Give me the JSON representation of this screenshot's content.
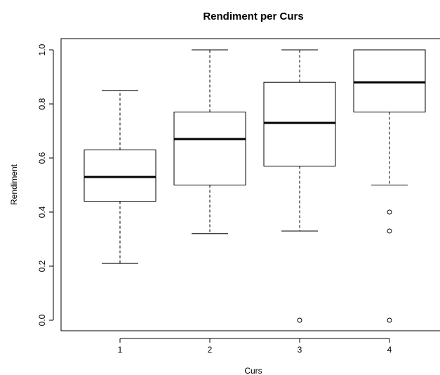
{
  "chart_data": {
    "type": "boxplot",
    "title": "Rendiment per Curs",
    "xlabel": "Curs",
    "ylabel": "Rendiment",
    "ylim": [
      -0.04,
      1.04
    ],
    "yticks": [
      0.0,
      0.2,
      0.4,
      0.6,
      0.8,
      1.0
    ],
    "ytick_labels": [
      "0.0",
      "0.2",
      "0.4",
      "0.6",
      "0.8",
      "1.0"
    ],
    "categories": [
      "1",
      "2",
      "3",
      "4"
    ],
    "boxes": [
      {
        "category": "1",
        "whisker_low": 0.21,
        "q1": 0.44,
        "median": 0.53,
        "q3": 0.63,
        "whisker_high": 0.85,
        "outliers": []
      },
      {
        "category": "2",
        "whisker_low": 0.32,
        "q1": 0.5,
        "median": 0.67,
        "q3": 0.77,
        "whisker_high": 1.0,
        "outliers": []
      },
      {
        "category": "3",
        "whisker_low": 0.33,
        "q1": 0.57,
        "median": 0.73,
        "q3": 0.88,
        "whisker_high": 1.0,
        "outliers": [
          0.0
        ]
      },
      {
        "category": "4",
        "whisker_low": 0.5,
        "q1": 0.77,
        "median": 0.88,
        "q3": 1.0,
        "whisker_high": 1.0,
        "outliers": [
          0.4,
          0.33,
          0.0
        ]
      }
    ],
    "grid": false,
    "colors": {
      "stroke": "#000000",
      "fill": "#ffffff"
    }
  }
}
